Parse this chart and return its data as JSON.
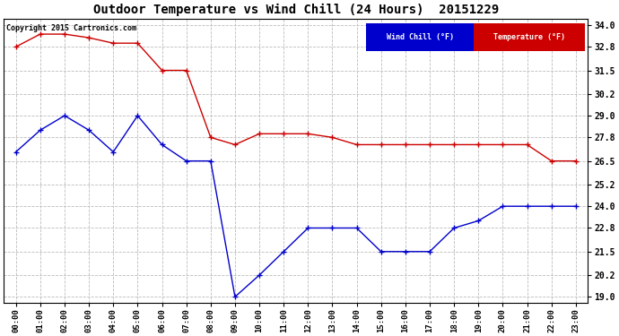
{
  "title": "Outdoor Temperature vs Wind Chill (24 Hours)  20151229",
  "copyright": "Copyright 2015 Cartronics.com",
  "background_color": "#ffffff",
  "plot_bg_color": "#ffffff",
  "grid_color": "#bbbbbb",
  "x_labels": [
    "00:00",
    "01:00",
    "02:00",
    "03:00",
    "04:00",
    "05:00",
    "06:00",
    "07:00",
    "08:00",
    "09:00",
    "10:00",
    "11:00",
    "12:00",
    "13:00",
    "14:00",
    "15:00",
    "16:00",
    "17:00",
    "18:00",
    "19:00",
    "20:00",
    "21:00",
    "22:00",
    "23:00"
  ],
  "y_ticks": [
    19.0,
    20.2,
    21.5,
    22.8,
    24.0,
    25.2,
    26.5,
    27.8,
    29.0,
    30.2,
    31.5,
    32.8,
    34.0
  ],
  "ylim": [
    18.65,
    34.35
  ],
  "wind_chill_color": "#0000cc",
  "temp_color": "#cc0000",
  "wind_chill_label": "Wind Chill (°F)",
  "temp_label": "Temperature (°F)",
  "wind_chill_data": [
    27.0,
    28.2,
    29.0,
    28.2,
    27.0,
    29.0,
    27.4,
    26.5,
    26.5,
    19.0,
    20.2,
    21.5,
    22.8,
    22.8,
    22.8,
    21.5,
    21.5,
    21.5,
    22.8,
    23.2,
    24.0,
    24.0,
    24.0,
    24.0
  ],
  "temp_data": [
    32.8,
    33.5,
    33.5,
    33.3,
    33.0,
    33.0,
    31.5,
    31.5,
    27.8,
    27.4,
    28.0,
    28.0,
    28.0,
    27.8,
    27.4,
    27.4,
    27.4,
    27.4,
    27.4,
    27.4,
    27.4,
    27.4,
    26.5,
    26.5
  ]
}
